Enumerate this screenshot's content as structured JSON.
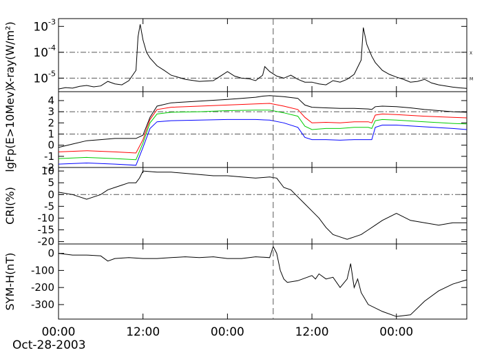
{
  "chart_data": [
    {
      "type": "line",
      "panel": "xray",
      "ylabel": "X-ray(W/m²)",
      "yscale": "log",
      "ylim": [
        3e-06,
        0.002
      ],
      "yticks": [
        {
          "value": 0.001,
          "label": "10",
          "exp": "-3"
        },
        {
          "value": 0.0001,
          "label": "10",
          "exp": "-4"
        },
        {
          "value": 1e-05,
          "label": "10",
          "exp": "-5"
        }
      ],
      "reference_lines": [
        {
          "value": 0.0001,
          "label": "X"
        },
        {
          "value": 1e-05,
          "label": "M"
        }
      ],
      "series": [
        {
          "color": "#000000",
          "x": [
            0,
            1,
            2,
            3,
            4,
            5,
            6,
            7,
            8,
            9,
            10,
            11,
            11.3,
            11.6,
            12,
            12.5,
            13,
            14,
            15,
            16,
            18,
            20,
            22,
            23,
            24,
            25,
            26,
            27,
            28,
            29,
            29.3,
            30,
            31,
            32,
            33,
            34,
            35,
            36,
            37,
            38,
            39,
            40,
            41,
            42,
            43,
            43.3,
            43.8,
            44.5,
            45,
            46,
            47,
            48,
            49,
            50,
            51,
            52,
            53,
            54,
            55,
            56,
            57,
            58
          ],
          "y": [
            3.8e-06,
            4.3e-06,
            4.1e-06,
            4.8e-06,
            5.2e-06,
            4.6e-06,
            5e-06,
            7.5e-06,
            6e-06,
            5.5e-06,
            8e-06,
            2e-05,
            0.0004,
            0.0012,
            0.0003,
            0.0001,
            6e-05,
            3e-05,
            2e-05,
            1.3e-05,
            9e-06,
            7.5e-06,
            8e-06,
            1.2e-05,
            1.8e-05,
            1.2e-05,
            1e-05,
            9.5e-06,
            8e-06,
            1.3e-05,
            2.8e-05,
            1.8e-05,
            1.2e-05,
            1e-05,
            1.3e-05,
            9e-06,
            7e-06,
            7e-06,
            6e-06,
            5.5e-06,
            8e-06,
            7e-06,
            9e-06,
            1.4e-05,
            5e-05,
            0.0009,
            0.0002,
            7e-05,
            4e-05,
            2e-05,
            1.4e-05,
            1.1e-05,
            9e-06,
            7e-06,
            7.5e-06,
            9e-06,
            6.5e-06,
            5.5e-06,
            5e-06,
            4.5e-06,
            4.2e-06,
            4e-06
          ]
        }
      ]
    },
    {
      "type": "line",
      "panel": "proton",
      "ylabel": "lgFp(E>10Mev)",
      "ylim": [
        -2,
        4.8
      ],
      "yticks": [
        4,
        3,
        2,
        1,
        0,
        -1,
        -2
      ],
      "reference_lines": [
        3,
        1
      ],
      "series": [
        {
          "color": "#000000",
          "x": [
            0,
            2,
            4,
            6,
            8,
            10,
            11,
            12,
            13,
            14,
            16,
            20,
            24,
            26,
            28,
            29,
            30,
            32,
            34,
            35,
            36,
            38,
            40,
            42,
            44,
            44.5,
            45,
            46,
            48,
            50,
            52,
            54,
            56,
            58
          ],
          "y": [
            -0.2,
            0.1,
            0.4,
            0.5,
            0.6,
            0.6,
            0.6,
            0.9,
            2.5,
            3.5,
            3.8,
            3.95,
            4.1,
            4.2,
            4.3,
            4.4,
            4.45,
            4.35,
            4.2,
            3.6,
            3.4,
            3.35,
            3.3,
            3.3,
            3.25,
            3.2,
            3.45,
            3.5,
            3.45,
            3.35,
            3.2,
            3.1,
            3.0,
            2.95
          ]
        },
        {
          "color": "#ff0000",
          "x": [
            0,
            4,
            8,
            11,
            12,
            13,
            14,
            16,
            20,
            24,
            28,
            30,
            32,
            34,
            35,
            36,
            38,
            40,
            42,
            44,
            44.5,
            45,
            46,
            48,
            52,
            56,
            58
          ],
          "y": [
            -0.6,
            -0.5,
            -0.6,
            -0.7,
            0.5,
            2.3,
            3.2,
            3.4,
            3.5,
            3.6,
            3.7,
            3.75,
            3.5,
            3.2,
            2.5,
            2.0,
            2.05,
            2.0,
            2.1,
            2.1,
            2.0,
            2.7,
            2.8,
            2.75,
            2.6,
            2.5,
            2.45
          ]
        },
        {
          "color": "#00cc00",
          "x": [
            0,
            4,
            8,
            11,
            12,
            13,
            14,
            16,
            20,
            24,
            28,
            30,
            32,
            34,
            35,
            36,
            38,
            40,
            42,
            44,
            44.5,
            45,
            46,
            48,
            52,
            56,
            58
          ],
          "y": [
            -1.2,
            -1.1,
            -1.2,
            -1.3,
            0.2,
            2.0,
            2.8,
            2.95,
            3.0,
            3.1,
            3.15,
            3.15,
            2.9,
            2.6,
            1.7,
            1.4,
            1.5,
            1.5,
            1.6,
            1.6,
            1.5,
            2.2,
            2.3,
            2.25,
            2.1,
            1.95,
            1.9
          ]
        },
        {
          "color": "#0000ff",
          "x": [
            0,
            4,
            8,
            11,
            12,
            13,
            14,
            16,
            20,
            24,
            28,
            30,
            32,
            34,
            35,
            36,
            38,
            40,
            42,
            44,
            44.5,
            45,
            46,
            48,
            52,
            56,
            58
          ],
          "y": [
            -1.7,
            -1.6,
            -1.7,
            -1.8,
            -0.2,
            1.5,
            2.1,
            2.2,
            2.25,
            2.3,
            2.3,
            2.25,
            2.0,
            1.6,
            0.7,
            0.5,
            0.5,
            0.45,
            0.5,
            0.5,
            0.5,
            1.6,
            1.8,
            1.8,
            1.65,
            1.5,
            1.4
          ]
        }
      ]
    },
    {
      "type": "line",
      "panel": "cr",
      "ylabel": "CRI(%)",
      "ylim": [
        -21,
        11.5
      ],
      "yticks": [
        10,
        5,
        0,
        -5,
        -10,
        -15,
        -20
      ],
      "reference_lines": [
        0
      ],
      "series": [
        {
          "color": "#000000",
          "x": [
            0,
            2,
            3,
            4,
            5,
            6,
            7,
            8,
            9,
            10,
            11,
            11.5,
            12,
            14,
            16,
            18,
            20,
            22,
            24,
            26,
            28,
            30,
            31,
            32,
            33,
            34,
            35,
            36,
            37,
            38,
            39,
            40,
            41,
            42,
            43,
            44,
            45,
            46,
            48,
            50,
            52,
            54,
            56,
            58
          ],
          "y": [
            1,
            0,
            -1,
            -2,
            -1,
            0,
            2,
            3,
            4,
            5,
            5,
            7,
            10,
            9.5,
            9.5,
            9.0,
            8.5,
            8,
            8,
            7.5,
            7,
            7.5,
            7,
            3,
            2,
            -1,
            -4,
            -7,
            -10,
            -14,
            -17,
            -18,
            -19,
            -18,
            -17,
            -15,
            -13,
            -11,
            -8,
            -11,
            -12,
            -13,
            -12,
            -12
          ]
        }
      ]
    },
    {
      "type": "line",
      "panel": "symh",
      "ylabel": "SYM-H(nT)",
      "ylim": [
        -385,
        55
      ],
      "yticks": [
        0,
        -100,
        -200,
        -300
      ],
      "series": [
        {
          "color": "#000000",
          "x": [
            0,
            2,
            4,
            6,
            7,
            8,
            10,
            12,
            14,
            16,
            18,
            20,
            22,
            24,
            26,
            28,
            30,
            30.5,
            31,
            31.5,
            32,
            32.5,
            34,
            36,
            36.5,
            37,
            38,
            39,
            40,
            41,
            41.5,
            42,
            42.5,
            43,
            44,
            46,
            48,
            50,
            52,
            54,
            56,
            58
          ],
          "y": [
            0,
            -10,
            -10,
            -15,
            -45,
            -30,
            -25,
            -30,
            -30,
            -25,
            -20,
            -25,
            -20,
            -30,
            -30,
            -20,
            -25,
            40,
            0,
            -100,
            -150,
            -170,
            -160,
            -130,
            -150,
            -120,
            -150,
            -140,
            -200,
            -150,
            -60,
            -200,
            -150,
            -230,
            -300,
            -340,
            -370,
            -360,
            -280,
            -220,
            -180,
            -155
          ]
        }
      ]
    }
  ],
  "xaxis": {
    "ticks": [
      {
        "x": 0,
        "label": "00:00"
      },
      {
        "x": 12,
        "label": "12:00"
      },
      {
        "x": 24,
        "label": "00:00"
      },
      {
        "x": 36,
        "label": "12:00"
      },
      {
        "x": 48,
        "label": "00:00"
      }
    ],
    "date_label": "Oct-28-2003",
    "xlim": [
      0,
      58
    ],
    "event_line_x": 30.5
  }
}
